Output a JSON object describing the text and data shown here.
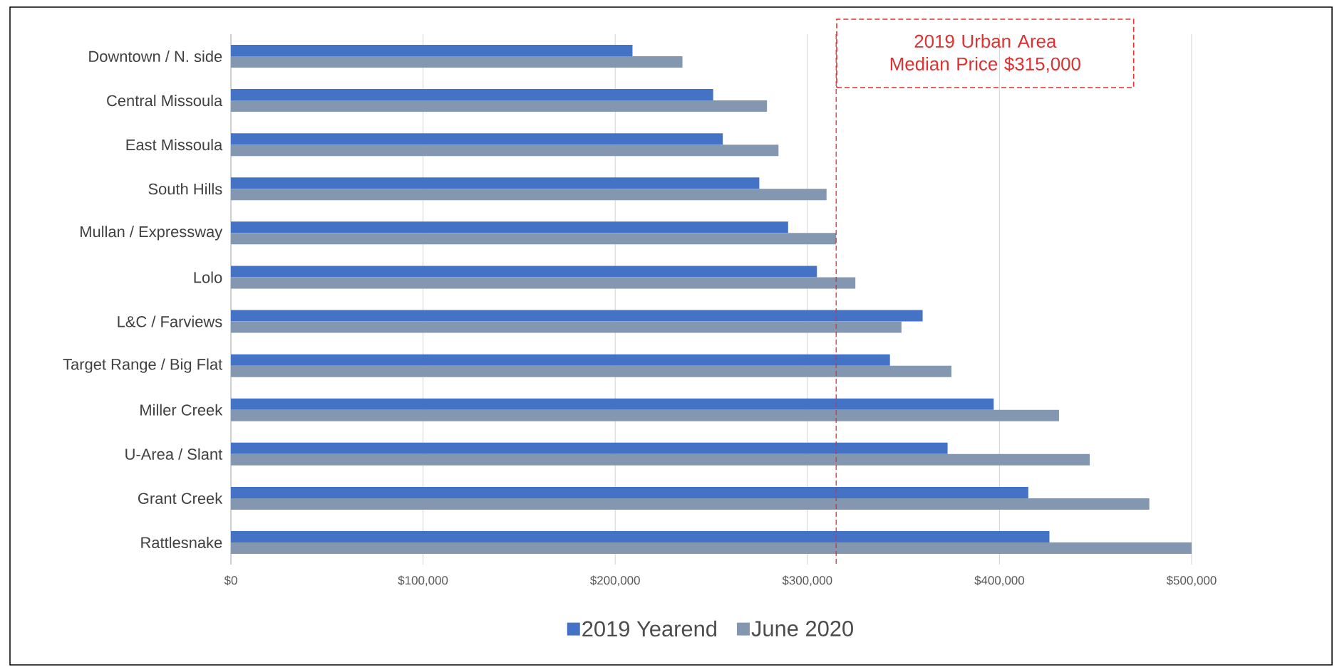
{
  "chart_data": {
    "type": "bar",
    "orientation": "horizontal",
    "categories": [
      "Downtown / N. side",
      "Central Missoula",
      "East Missoula",
      "South Hills",
      "Mullan / Expressway",
      "Lolo",
      "L&C / Farviews",
      "Target Range / Big Flat",
      "Miller Creek",
      "U-Area / Slant",
      "Grant Creek",
      "Rattlesnake"
    ],
    "series": [
      {
        "name": "2019 Yearend",
        "color": "#4472c4",
        "values": [
          209000,
          251000,
          256000,
          275000,
          290000,
          305000,
          360000,
          343000,
          397000,
          373000,
          415000,
          426000
        ]
      },
      {
        "name": "June 2020",
        "color": "#8497b0",
        "values": [
          235000,
          279000,
          285000,
          310000,
          315000,
          325000,
          349000,
          375000,
          431000,
          447000,
          478000,
          500000
        ]
      }
    ],
    "xlim": [
      0,
      500000
    ],
    "xticks": [
      {
        "value": 0,
        "label": "$0"
      },
      {
        "value": 100000,
        "label": "$100,000"
      },
      {
        "value": 200000,
        "label": "$200,000"
      },
      {
        "value": 300000,
        "label": "$300,000"
      },
      {
        "value": 400000,
        "label": "$400,000"
      },
      {
        "value": 500000,
        "label": "$500,000"
      }
    ],
    "grid": "x",
    "legend": "bottom",
    "ref_lines": [
      {
        "axis": "x",
        "value": 315000,
        "label": "2019 Urban Area Median Price $315,000",
        "color": "#e03030",
        "line_style": "dashed"
      }
    ]
  }
}
